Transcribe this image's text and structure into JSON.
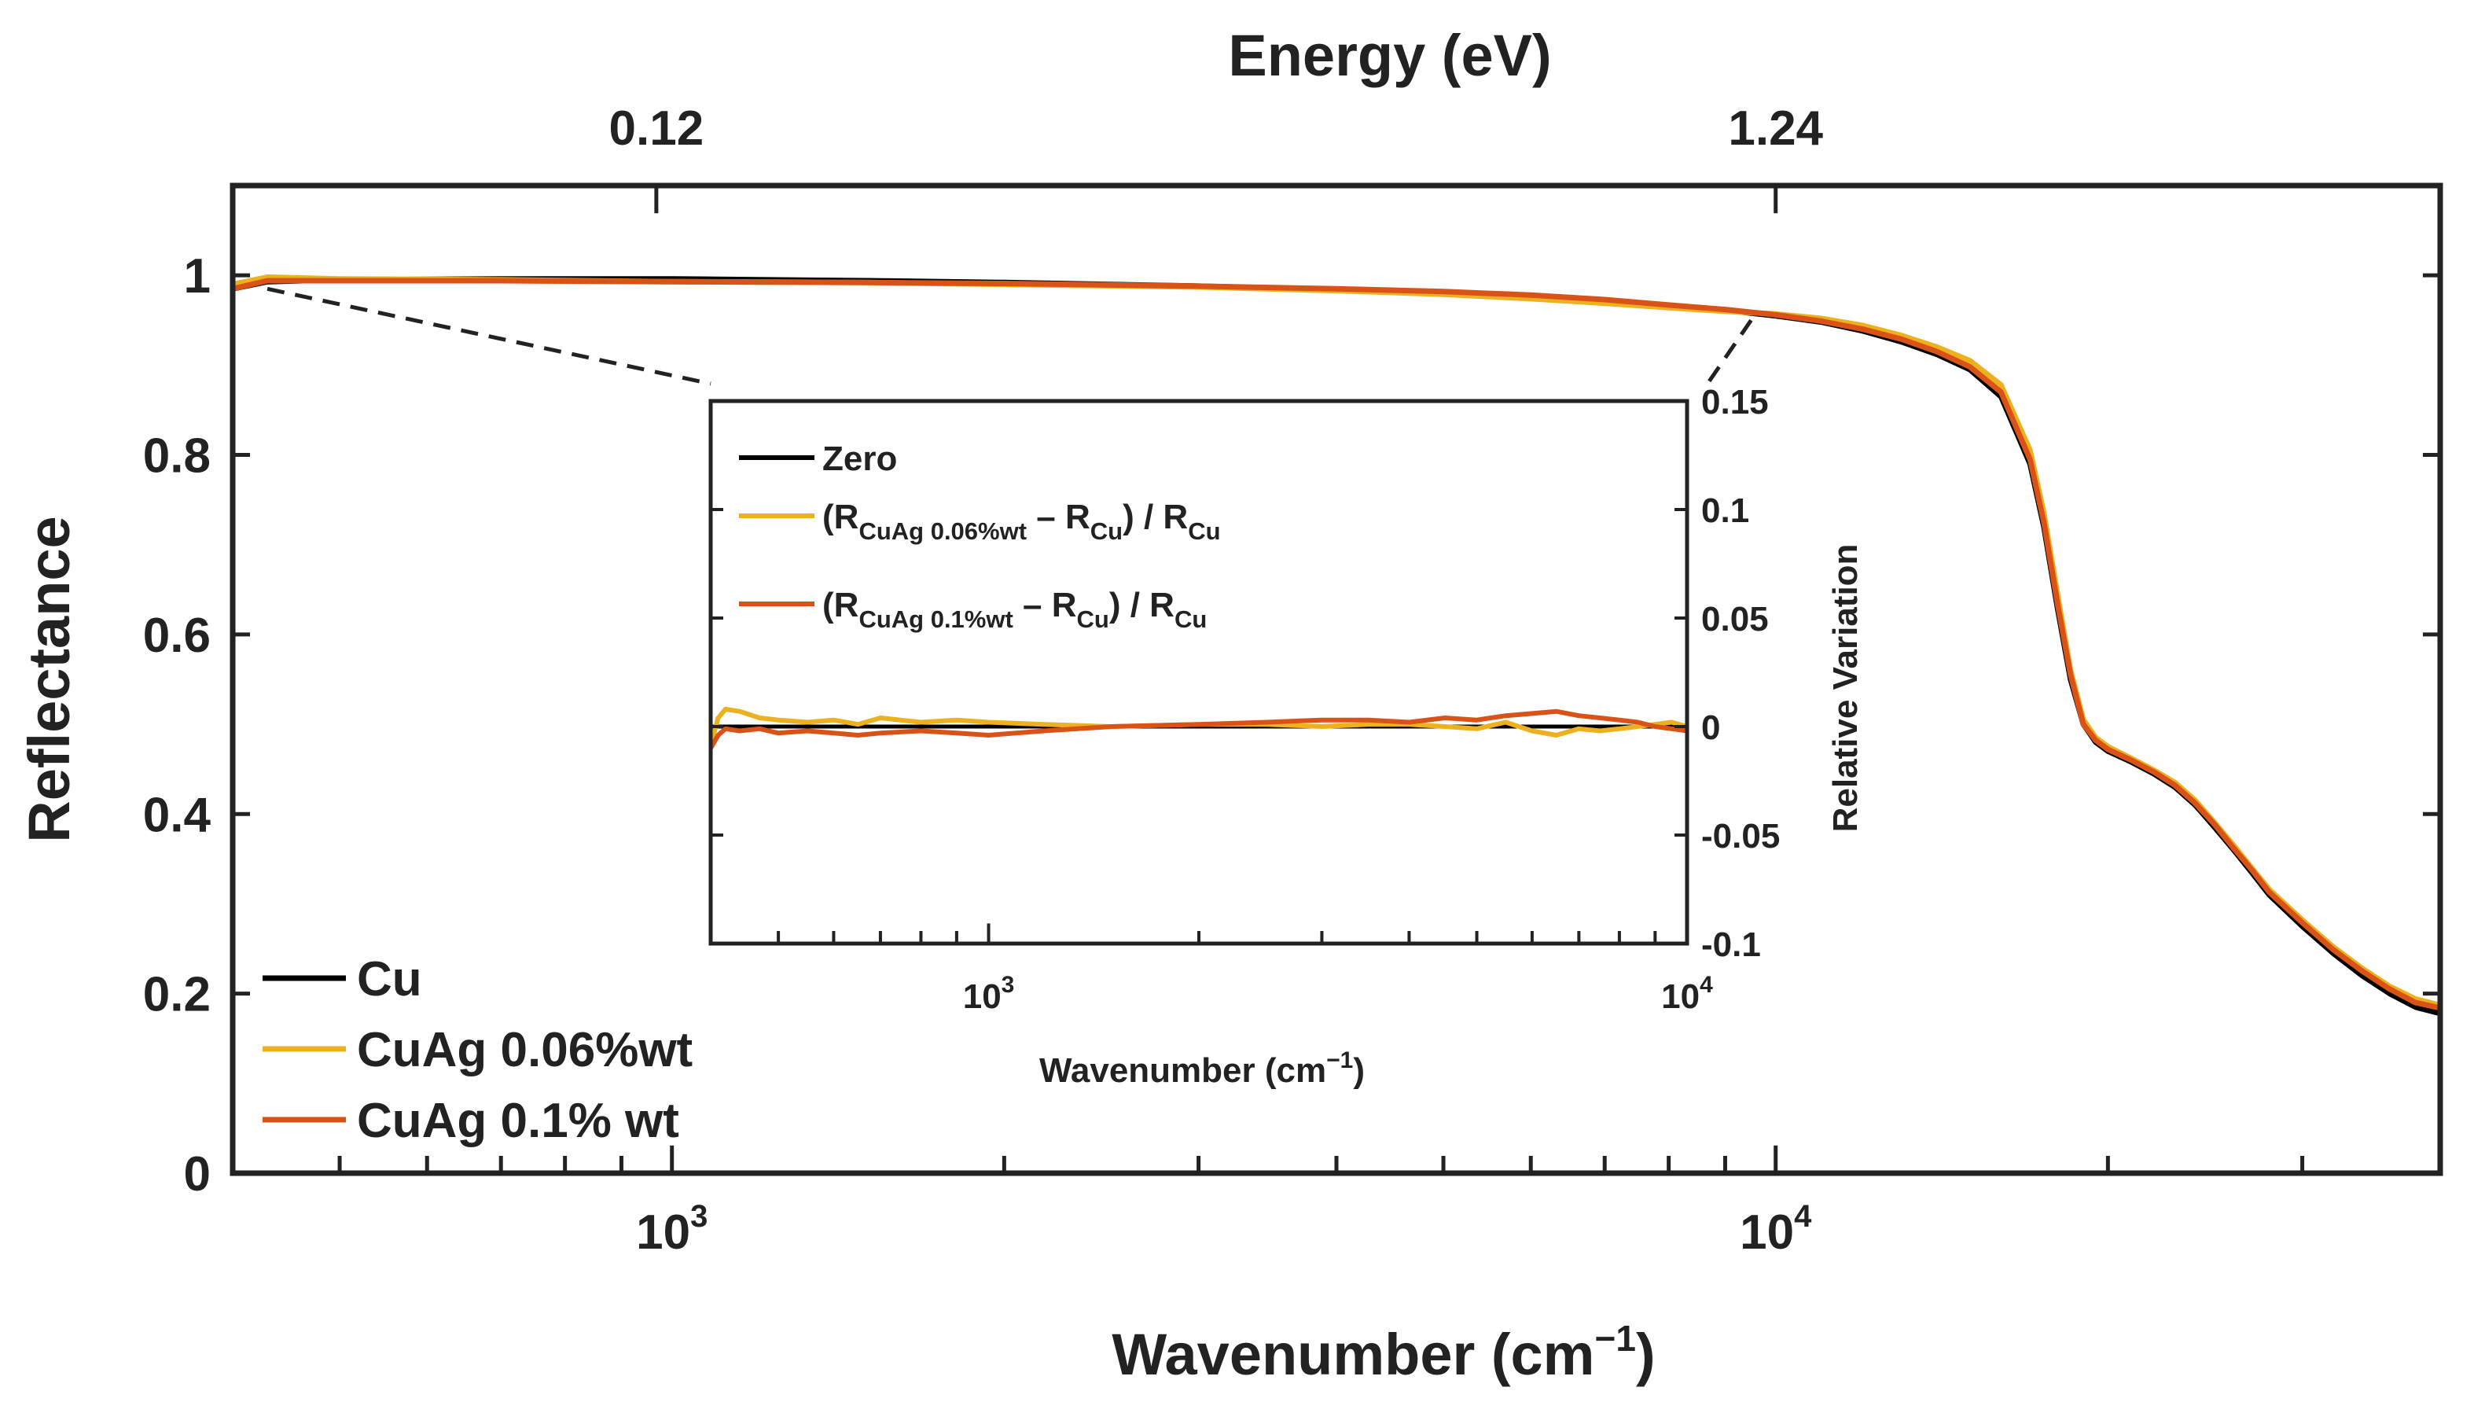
{
  "chart_data": [
    {
      "type": "line",
      "xscale": "log",
      "xlabel": "Wavenumber (cm",
      "xlabel_sup": "−1",
      "xlabel_close": ")",
      "ylabel": "Reflectance",
      "top_axis_title": "Energy (eV)",
      "top_axis_ticks": [
        {
          "x": 968,
          "label": "0.12"
        },
        {
          "x": 10000,
          "label": "1.24"
        }
      ],
      "xlim": [
        400,
        40000
      ],
      "ylim": [
        0,
        1.1
      ],
      "xtick_labels": [
        {
          "x": 1000,
          "base": "10",
          "exp": "3"
        },
        {
          "x": 10000,
          "base": "10",
          "exp": "4"
        }
      ],
      "yticks": [
        0,
        0.2,
        0.4,
        0.6,
        0.8,
        1
      ],
      "ytick_labels": [
        "0",
        "0.2",
        "0.4",
        "0.6",
        "0.8",
        "1"
      ],
      "grid": false,
      "legend_position": "bottom-left",
      "series": [
        {
          "name": "Cu",
          "color": "#000000",
          "x": [
            400,
            430,
            500,
            700,
            1000,
            1500,
            2000,
            3000,
            4000,
            5000,
            6000,
            7000,
            8000,
            9000,
            10000,
            11000,
            12000,
            13000,
            14000,
            15000,
            16000,
            17000,
            17500,
            18000,
            18500,
            19000,
            19500,
            20000,
            21000,
            22000,
            23000,
            24000,
            25000,
            26000,
            27000,
            28000,
            30000,
            32000,
            34000,
            36000,
            38000,
            40000
          ],
          "y": [
            0.985,
            0.993,
            0.995,
            0.996,
            0.996,
            0.994,
            0.992,
            0.988,
            0.984,
            0.981,
            0.977,
            0.972,
            0.966,
            0.961,
            0.955,
            0.948,
            0.938,
            0.926,
            0.912,
            0.895,
            0.865,
            0.79,
            0.72,
            0.63,
            0.55,
            0.5,
            0.48,
            0.47,
            0.458,
            0.445,
            0.43,
            0.41,
            0.385,
            0.36,
            0.335,
            0.31,
            0.275,
            0.245,
            0.22,
            0.2,
            0.185,
            0.178
          ]
        },
        {
          "name": "CuAg 0.06%wt",
          "color": "#EDB120",
          "x": [
            400,
            430,
            500,
            700,
            1000,
            1500,
            2000,
            3000,
            4000,
            5000,
            6000,
            7000,
            8000,
            9000,
            10000,
            11000,
            12000,
            13000,
            14000,
            15000,
            16000,
            17000,
            17500,
            18000,
            18500,
            19000,
            19500,
            20000,
            21000,
            22000,
            23000,
            24000,
            25000,
            26000,
            27000,
            28000,
            30000,
            32000,
            34000,
            36000,
            38000,
            40000
          ],
          "y": [
            0.99,
            0.998,
            0.996,
            0.995,
            0.993,
            0.992,
            0.99,
            0.987,
            0.983,
            0.979,
            0.974,
            0.969,
            0.964,
            0.96,
            0.957,
            0.952,
            0.944,
            0.933,
            0.92,
            0.905,
            0.878,
            0.805,
            0.735,
            0.645,
            0.56,
            0.505,
            0.485,
            0.475,
            0.462,
            0.449,
            0.435,
            0.415,
            0.39,
            0.365,
            0.34,
            0.316,
            0.282,
            0.252,
            0.228,
            0.208,
            0.194,
            0.187
          ]
        },
        {
          "name": "CuAg 0.1% wt",
          "color": "#D95319",
          "x": [
            400,
            430,
            500,
            700,
            1000,
            1500,
            2000,
            3000,
            4000,
            5000,
            6000,
            7000,
            8000,
            9000,
            10000,
            11000,
            12000,
            13000,
            14000,
            15000,
            16000,
            17000,
            17500,
            18000,
            18500,
            19000,
            19500,
            20000,
            21000,
            22000,
            23000,
            24000,
            25000,
            26000,
            27000,
            28000,
            30000,
            32000,
            34000,
            36000,
            38000,
            40000
          ],
          "y": [
            0.985,
            0.994,
            0.994,
            0.994,
            0.993,
            0.992,
            0.991,
            0.988,
            0.985,
            0.982,
            0.978,
            0.973,
            0.967,
            0.962,
            0.956,
            0.949,
            0.94,
            0.929,
            0.915,
            0.898,
            0.87,
            0.795,
            0.725,
            0.635,
            0.555,
            0.5,
            0.482,
            0.472,
            0.46,
            0.447,
            0.432,
            0.412,
            0.388,
            0.362,
            0.338,
            0.313,
            0.279,
            0.249,
            0.225,
            0.205,
            0.19,
            0.184
          ]
        }
      ]
    },
    {
      "type": "line",
      "xscale": "log",
      "xlabel": "Wavenumber (cm",
      "xlabel_sup": "−1",
      "xlabel_close": ")",
      "ylabel": "Relative Variation",
      "xlim": [
        400,
        10000
      ],
      "ylim": [
        -0.1,
        0.15
      ],
      "xtick_labels": [
        {
          "x": 1000,
          "base": "10",
          "exp": "3"
        },
        {
          "x": 10000,
          "base": "10",
          "exp": "4"
        }
      ],
      "yticks": [
        -0.1,
        -0.05,
        0,
        0.05,
        0.1,
        0.15
      ],
      "ytick_labels": [
        "-0.1",
        "-0.05",
        "0",
        "0.05",
        "0.1",
        "0.15"
      ],
      "grid": false,
      "legend_position": "top-left",
      "series": [
        {
          "color": "#000000",
          "label": {
            "pre": "Zero"
          },
          "x": [
            400,
            10000
          ],
          "y": [
            0,
            0
          ]
        },
        {
          "color": "#EDB120",
          "label": {
            "pre": "(R",
            "sub1": "CuAg 0.06%wt",
            "mid": " – R",
            "sub2": "Cu",
            "post": ") / R",
            "sub3": "Cu"
          },
          "x": [
            400,
            410,
            420,
            440,
            470,
            500,
            550,
            600,
            650,
            700,
            800,
            900,
            1000,
            1200,
            1500,
            2000,
            2500,
            3000,
            3500,
            4000,
            4500,
            5000,
            5500,
            6000,
            6500,
            7000,
            7500,
            8000,
            8500,
            9000,
            9500,
            10000
          ],
          "y": [
            -0.009,
            0.004,
            0.008,
            0.007,
            0.004,
            0.003,
            0.002,
            0.003,
            0.001,
            0.004,
            0.002,
            0.003,
            0.002,
            0.001,
            0.0,
            0.001,
            0.001,
            0.0,
            0.001,
            0.001,
            0.0,
            -0.001,
            0.002,
            -0.002,
            -0.004,
            -0.001,
            -0.002,
            -0.001,
            0.0,
            0.001,
            0.002,
            0.0
          ]
        },
        {
          "color": "#D95319",
          "label": {
            "pre": "(R",
            "sub1": "CuAg 0.1%wt",
            "mid": " – R",
            "sub2": "Cu",
            "post": ") / R",
            "sub3": "Cu"
          },
          "x": [
            400,
            410,
            420,
            440,
            470,
            500,
            550,
            600,
            650,
            700,
            800,
            900,
            1000,
            1200,
            1500,
            2000,
            2500,
            3000,
            3500,
            4000,
            4500,
            5000,
            5500,
            6000,
            6500,
            7000,
            7500,
            8000,
            8500,
            9000,
            9500,
            10000
          ],
          "y": [
            -0.01,
            -0.004,
            -0.001,
            -0.002,
            -0.001,
            -0.003,
            -0.002,
            -0.003,
            -0.004,
            -0.003,
            -0.002,
            -0.003,
            -0.004,
            -0.002,
            0.0,
            0.001,
            0.002,
            0.003,
            0.003,
            0.002,
            0.004,
            0.003,
            0.005,
            0.006,
            0.007,
            0.005,
            0.004,
            0.003,
            0.002,
            0.0,
            -0.001,
            -0.002
          ]
        }
      ]
    }
  ]
}
